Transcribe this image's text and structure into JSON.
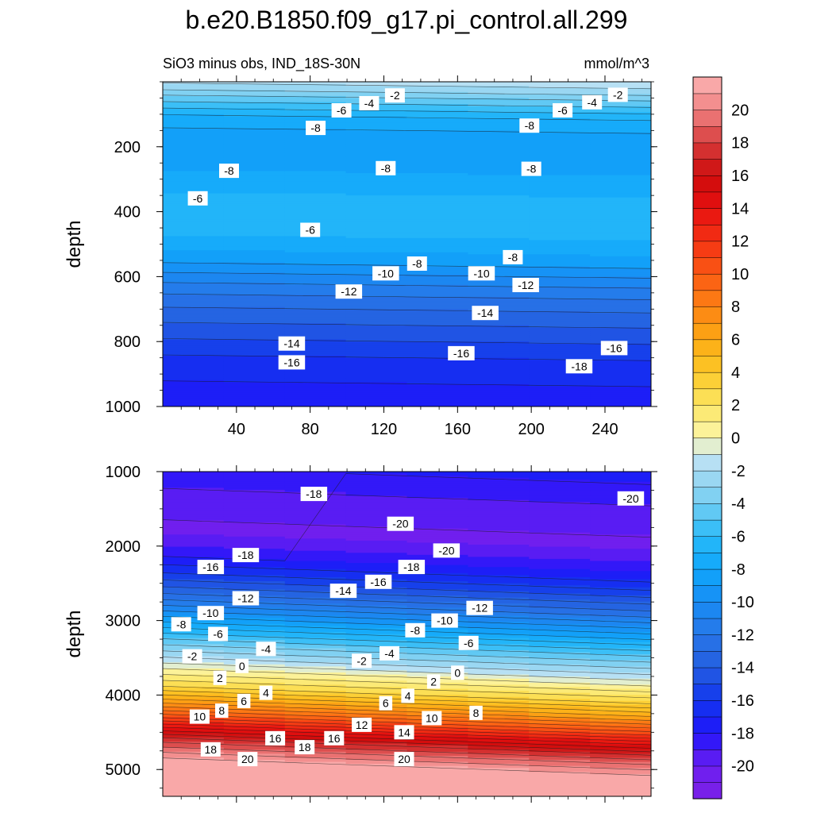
{
  "chart_data": {
    "type": "heatmap",
    "title": "b.e20.B1850.f09_g17.pi_control.all.299",
    "subtitle": "SiO3 minus obs, IND_18S-30N",
    "units": "mmol/m^3",
    "colorbar": {
      "levels": [
        -22,
        -21,
        -20,
        -19,
        -18,
        -17,
        -16,
        -15,
        -14,
        -13,
        -12,
        -11,
        -10,
        -9,
        -8,
        -7,
        -6,
        -5,
        -4,
        -3,
        -2,
        -1,
        0,
        1,
        2,
        3,
        4,
        5,
        6,
        7,
        8,
        9,
        10,
        11,
        12,
        13,
        14,
        15,
        16,
        17,
        18,
        19,
        20,
        21,
        22
      ],
      "tick_labels": [
        "-20",
        "-18",
        "-16",
        "-14",
        "-12",
        "-10",
        "-8",
        "-6",
        "-4",
        "-2",
        "0",
        "2",
        "4",
        "6",
        "8",
        "10",
        "12",
        "14",
        "16",
        "18",
        "20"
      ]
    },
    "panels": [
      {
        "name": "upper",
        "ylabel": "depth",
        "ylim": [
          1000,
          0
        ],
        "xlim": [
          0,
          265
        ],
        "x_ticks": [
          "40",
          "80",
          "120",
          "160",
          "200",
          "240"
        ],
        "y_ticks": [
          "200",
          "400",
          "600",
          "800",
          "1000"
        ],
        "field": [
          {
            "depth": 0,
            "value": -1.5
          },
          {
            "depth": 25,
            "value": -2.5
          },
          {
            "depth": 50,
            "value": -4
          },
          {
            "depth": 80,
            "value": -5.5
          },
          {
            "depth": 110,
            "value": -7
          },
          {
            "depth": 150,
            "value": -8
          },
          {
            "depth": 200,
            "value": -8.5
          },
          {
            "depth": 260,
            "value": -8.3
          },
          {
            "depth": 320,
            "value": -7.5
          },
          {
            "depth": 380,
            "value": -6.5
          },
          {
            "depth": 440,
            "value": -6.3
          },
          {
            "depth": 500,
            "value": -7.3
          },
          {
            "depth": 560,
            "value": -8.8
          },
          {
            "depth": 620,
            "value": -10.8
          },
          {
            "depth": 680,
            "value": -12.5
          },
          {
            "depth": 740,
            "value": -13.8
          },
          {
            "depth": 800,
            "value": -15.0
          },
          {
            "depth": 860,
            "value": -16.2
          },
          {
            "depth": 930,
            "value": -17.0
          },
          {
            "depth": 1000,
            "value": -17.8
          }
        ],
        "contour_labels": [
          {
            "text": "-2",
            "x": 126,
            "y": 42
          },
          {
            "text": "-4",
            "x": 112,
            "y": 66
          },
          {
            "text": "-6",
            "x": 97,
            "y": 88
          },
          {
            "text": "-8",
            "x": 83,
            "y": 142
          },
          {
            "text": "-2",
            "x": 247,
            "y": 40
          },
          {
            "text": "-4",
            "x": 233,
            "y": 63
          },
          {
            "text": "-6",
            "x": 217,
            "y": 88
          },
          {
            "text": "-8",
            "x": 199,
            "y": 135
          },
          {
            "text": "-8",
            "x": 36,
            "y": 274
          },
          {
            "text": "-8",
            "x": 121,
            "y": 266
          },
          {
            "text": "-8",
            "x": 200,
            "y": 268
          },
          {
            "text": "-6",
            "x": 19,
            "y": 359
          },
          {
            "text": "-6",
            "x": 80,
            "y": 456
          },
          {
            "text": "-8",
            "x": 138,
            "y": 560
          },
          {
            "text": "-8",
            "x": 190,
            "y": 540
          },
          {
            "text": "-10",
            "x": 121,
            "y": 590
          },
          {
            "text": "-10",
            "x": 173,
            "y": 590
          },
          {
            "text": "-12",
            "x": 101,
            "y": 646
          },
          {
            "text": "-12",
            "x": 197,
            "y": 626
          },
          {
            "text": "-14",
            "x": 175,
            "y": 712
          },
          {
            "text": "-14",
            "x": 70,
            "y": 806
          },
          {
            "text": "-16",
            "x": 70,
            "y": 864
          },
          {
            "text": "-16",
            "x": 162,
            "y": 836
          },
          {
            "text": "-16",
            "x": 245,
            "y": 820
          },
          {
            "text": "-18",
            "x": 226,
            "y": 876
          }
        ]
      },
      {
        "name": "lower",
        "ylabel": "depth",
        "ylim": [
          5360,
          1000
        ],
        "xlim": [
          0,
          265
        ],
        "x_ticks": [],
        "y_ticks": [
          "1000",
          "2000",
          "3000",
          "4000",
          "5000"
        ],
        "field": [
          {
            "depth": 1000,
            "value": -17.8
          },
          {
            "depth": 1400,
            "value": -19.2
          },
          {
            "depth": 1900,
            "value": -20.3
          },
          {
            "depth": 2200,
            "value": -18.5
          },
          {
            "depth": 2500,
            "value": -15.8
          },
          {
            "depth": 2800,
            "value": -12.5
          },
          {
            "depth": 3100,
            "value": -8.5
          },
          {
            "depth": 3400,
            "value": -4.5
          },
          {
            "depth": 3650,
            "value": -1.5
          },
          {
            "depth": 3800,
            "value": 0.5
          },
          {
            "depth": 4000,
            "value": 3
          },
          {
            "depth": 4200,
            "value": 6.5
          },
          {
            "depth": 4400,
            "value": 10.5
          },
          {
            "depth": 4550,
            "value": 14
          },
          {
            "depth": 4700,
            "value": 17.2
          },
          {
            "depth": 4850,
            "value": 19.5
          },
          {
            "depth": 5000,
            "value": 21.5
          },
          {
            "depth": 5360,
            "value": 21.5
          }
        ],
        "contour_labels": [
          {
            "text": "-18",
            "x": 82,
            "y": 1300
          },
          {
            "text": "-20",
            "x": 254,
            "y": 1360
          },
          {
            "text": "-20",
            "x": 129,
            "y": 1700
          },
          {
            "text": "-20",
            "x": 154,
            "y": 2060
          },
          {
            "text": "-18",
            "x": 45,
            "y": 2120
          },
          {
            "text": "-18",
            "x": 135,
            "y": 2280
          },
          {
            "text": "-16",
            "x": 26,
            "y": 2280
          },
          {
            "text": "-16",
            "x": 117,
            "y": 2480
          },
          {
            "text": "-14",
            "x": 98,
            "y": 2600
          },
          {
            "text": "-12",
            "x": 45,
            "y": 2700
          },
          {
            "text": "-10",
            "x": 26,
            "y": 2900
          },
          {
            "text": "-8",
            "x": 10,
            "y": 3050
          },
          {
            "text": "-6",
            "x": 30,
            "y": 3180
          },
          {
            "text": "-4",
            "x": 56,
            "y": 3380
          },
          {
            "text": "-2",
            "x": 16,
            "y": 3480
          },
          {
            "text": "0",
            "x": 43,
            "y": 3610
          },
          {
            "text": "2",
            "x": 31,
            "y": 3770
          },
          {
            "text": "-2",
            "x": 108,
            "y": 3540
          },
          {
            "text": "-4",
            "x": 123,
            "y": 3440
          },
          {
            "text": "-8",
            "x": 137,
            "y": 3130
          },
          {
            "text": "-10",
            "x": 153,
            "y": 3000
          },
          {
            "text": "-12",
            "x": 172,
            "y": 2830
          },
          {
            "text": "-6",
            "x": 166,
            "y": 3300
          },
          {
            "text": "0",
            "x": 160,
            "y": 3700
          },
          {
            "text": "2",
            "x": 147,
            "y": 3820
          },
          {
            "text": "4",
            "x": 56,
            "y": 3970
          },
          {
            "text": "6",
            "x": 44,
            "y": 4080
          },
          {
            "text": "8",
            "x": 32,
            "y": 4210
          },
          {
            "text": "10",
            "x": 20,
            "y": 4290
          },
          {
            "text": "4",
            "x": 133,
            "y": 4010
          },
          {
            "text": "6",
            "x": 121,
            "y": 4110
          },
          {
            "text": "8",
            "x": 170,
            "y": 4240
          },
          {
            "text": "10",
            "x": 146,
            "y": 4310
          },
          {
            "text": "12",
            "x": 108,
            "y": 4400
          },
          {
            "text": "14",
            "x": 131,
            "y": 4500
          },
          {
            "text": "16",
            "x": 61,
            "y": 4580
          },
          {
            "text": "16",
            "x": 93,
            "y": 4580
          },
          {
            "text": "18",
            "x": 26,
            "y": 4730
          },
          {
            "text": "18",
            "x": 77,
            "y": 4700
          },
          {
            "text": "20",
            "x": 46,
            "y": 4860
          },
          {
            "text": "20",
            "x": 131,
            "y": 4860
          }
        ]
      }
    ]
  }
}
